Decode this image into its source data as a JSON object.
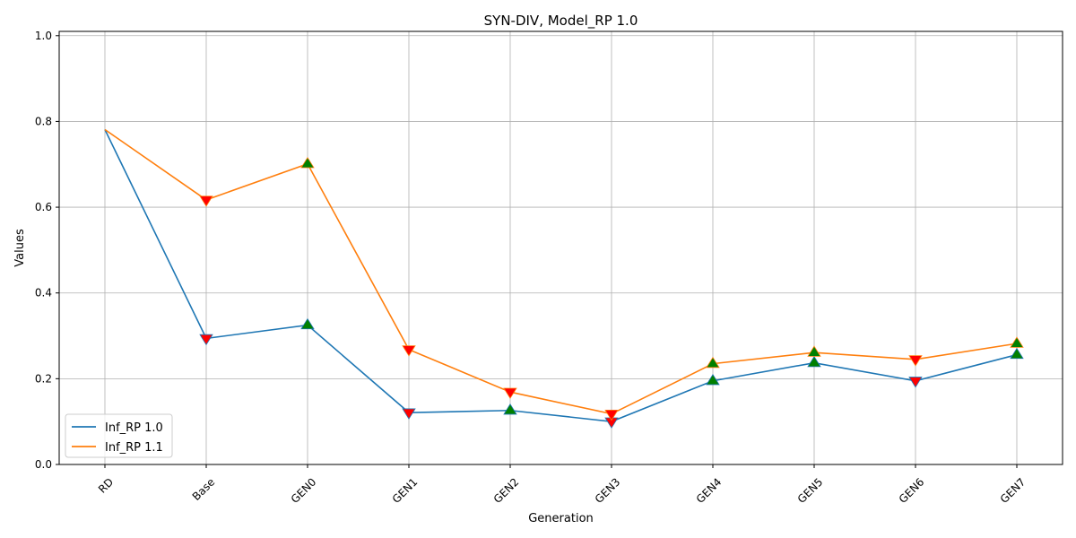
{
  "chart_data": {
    "type": "line",
    "title": "SYN-DIV, Model_RP 1.0",
    "xlabel": "Generation",
    "ylabel": "Values",
    "categories": [
      "RD",
      "Base",
      "GEN0",
      "GEN1",
      "GEN2",
      "GEN3",
      "GEN4",
      "GEN5",
      "GEN6",
      "GEN7"
    ],
    "ylim": [
      0,
      1.01
    ],
    "yticks": [
      0.0,
      0.2,
      0.4,
      0.6,
      0.8,
      1.0
    ],
    "ytick_labels": [
      "0.0",
      "0.2",
      "0.4",
      "0.6",
      "0.8",
      "1.0"
    ],
    "grid": true,
    "legend_position": "lower-left",
    "series": [
      {
        "name": "Inf_RP 1.0",
        "color": "#1f77b4",
        "values": [
          0.781,
          0.294,
          0.325,
          0.121,
          0.126,
          0.1,
          0.195,
          0.237,
          0.195,
          0.256
        ],
        "markers": [
          null,
          "down",
          "up",
          "down",
          "up",
          "down",
          "up",
          "up",
          "down",
          "up"
        ]
      },
      {
        "name": "Inf_RP 1.1",
        "color": "#ff7f0e",
        "values": [
          0.781,
          0.617,
          0.701,
          0.268,
          0.169,
          0.118,
          0.235,
          0.261,
          0.245,
          0.282
        ],
        "markers": [
          null,
          "down",
          "up",
          "down",
          "down",
          "down",
          "up",
          "up",
          "down",
          "up"
        ]
      }
    ],
    "marker_colors": {
      "up": "#008000",
      "down": "#ff0000"
    }
  }
}
